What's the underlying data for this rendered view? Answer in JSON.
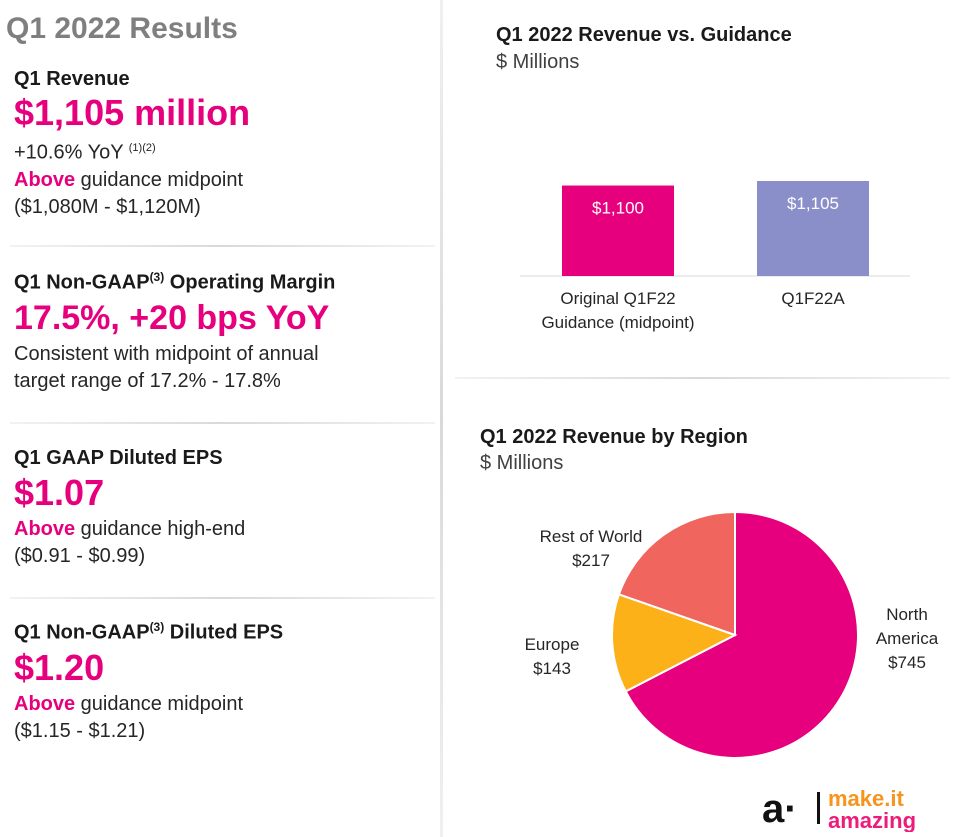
{
  "page_title": "Q1 2022 Results",
  "metrics": [
    {
      "label": "Q1 Revenue",
      "label_sup": "",
      "label_suffix": "",
      "value": "$1,105 million",
      "line1_text": "+10.6% YoY ",
      "line1_sup": "(1)(2)",
      "line1_hl": "",
      "line1_rest": "",
      "line2_hl": "Above",
      "line2_rest": " guidance midpoint",
      "line3": "($1,080M - $1,120M)"
    },
    {
      "label": "Q1 Non-GAAP",
      "label_sup": "(3)",
      "label_suffix": " Operating Margin",
      "value": "17.5%, +20 bps YoY",
      "line1_text": "Consistent with midpoint of annual",
      "line1_sup": "",
      "line1_hl": "",
      "line1_rest": "",
      "line2_hl": "",
      "line2_rest": "target range of 17.2% - 17.8%",
      "line3": ""
    },
    {
      "label": "Q1 GAAP Diluted EPS",
      "label_sup": "",
      "label_suffix": "",
      "value": "$1.07",
      "line1_text": "",
      "line1_sup": "",
      "line1_hl": "Above",
      "line1_rest": " guidance high-end",
      "line2_hl": "",
      "line2_rest": "($0.91 - $0.99)",
      "line3": ""
    },
    {
      "label": "Q1 Non-GAAP",
      "label_sup": "(3)",
      "label_suffix": " Diluted EPS",
      "value": "$1.20",
      "line1_text": "",
      "line1_sup": "",
      "line1_hl": "Above",
      "line1_rest": " guidance midpoint",
      "line2_hl": "",
      "line2_rest": "($1.15 - $1.21)",
      "line3": ""
    }
  ],
  "logo": {
    "mark": "a·",
    "line1": "make.it",
    "line2": "amazing"
  },
  "colors": {
    "magenta": "#e6007e",
    "periwinkle": "#8b8fc9",
    "coral": "#f0665e",
    "amber": "#fbb117",
    "title_gray": "#7f7f7f"
  },
  "chart_data": [
    {
      "type": "bar",
      "title": "Q1 2022 Revenue vs. Guidance",
      "subtitle": "$ Millions",
      "categories": [
        "Original Q1F22 Guidance (midpoint)",
        "Q1F22A"
      ],
      "category_lines": [
        [
          "Original Q1F22",
          "Guidance (midpoint)"
        ],
        [
          "Q1F22A"
        ]
      ],
      "values": [
        1100,
        1105
      ],
      "data_labels": [
        "$1,100",
        "$1,105"
      ],
      "colors": [
        "#e6007e",
        "#8b8fc9"
      ],
      "grid": false
    },
    {
      "type": "pie",
      "title": "Q1 2022 Revenue by Region",
      "subtitle": "$ Millions",
      "slices": [
        {
          "label": "North America",
          "label_lines": [
            "North",
            "America"
          ],
          "value": 745,
          "display": "$745",
          "color": "#e6007e"
        },
        {
          "label": "Europe",
          "label_lines": [
            "Europe"
          ],
          "value": 143,
          "display": "$143",
          "color": "#fbb117"
        },
        {
          "label": "Rest of World",
          "label_lines": [
            "Rest of World"
          ],
          "value": 217,
          "display": "$217",
          "color": "#f0665e"
        }
      ]
    }
  ]
}
